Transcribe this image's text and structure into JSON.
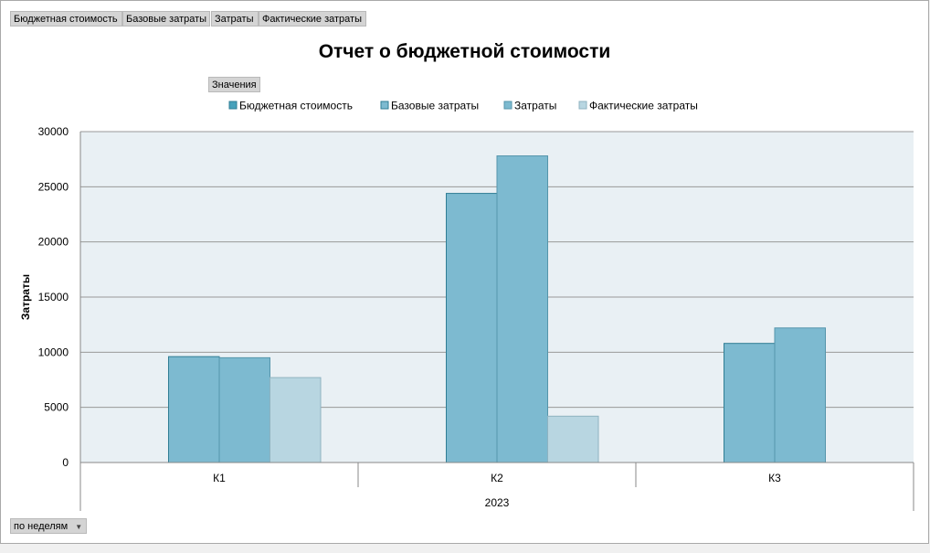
{
  "field_buttons": [
    {
      "label": "Бюджетная стоимость"
    },
    {
      "label": "Базовые затраты"
    },
    {
      "label": "Затраты"
    },
    {
      "label": "Фактические затраты"
    }
  ],
  "values_button": "Значения",
  "period_selector": "по неделям",
  "colors": {
    "budget": "#47a1bb",
    "baseline": "#7dbad0",
    "cost": "#7dbad0",
    "actual": "#b8d6e1",
    "plot_bg": "#e9f0f4",
    "grid": "#999999"
  },
  "chart_data": {
    "type": "bar",
    "title": "Отчет о бюджетной стоимости",
    "ylabel": "Затраты",
    "xlabel": "",
    "ylim": [
      0,
      30000
    ],
    "yticks": [
      0,
      5000,
      10000,
      15000,
      20000,
      25000,
      30000
    ],
    "categories": [
      "К1",
      "К2",
      "К3"
    ],
    "group_label": "2023",
    "legend_position": "top",
    "grid": true,
    "series": [
      {
        "name": "Бюджетная стоимость",
        "values": [
          null,
          null,
          null
        ]
      },
      {
        "name": "Базовые затраты",
        "values": [
          9600,
          24400,
          10800
        ]
      },
      {
        "name": "Затраты",
        "values": [
          9500,
          27800,
          12200
        ]
      },
      {
        "name": "Фактические затраты",
        "values": [
          7700,
          4200,
          null
        ]
      }
    ]
  }
}
